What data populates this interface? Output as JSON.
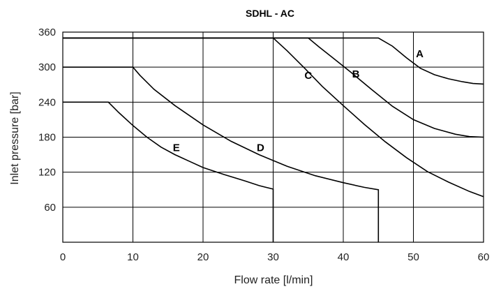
{
  "chart_data": {
    "type": "line",
    "title": "SDHL - AC",
    "xlabel": "Flow rate [l/min]",
    "ylabel": "Inlet pressure [bar]",
    "xlim": [
      0,
      60
    ],
    "ylim": [
      0,
      360
    ],
    "xticks": [
      0,
      10,
      20,
      30,
      40,
      50,
      60
    ],
    "yticks": [
      60,
      120,
      180,
      240,
      300,
      360
    ],
    "ytick_labels": [
      "60",
      "120",
      "180",
      "240",
      "300",
      "360"
    ],
    "xtick_labels": [
      "0",
      "10",
      "20",
      "30",
      "40",
      "50",
      "60"
    ],
    "grid": true,
    "series": [
      {
        "name": "A",
        "points": [
          [
            0,
            350
          ],
          [
            45,
            350
          ],
          [
            47,
            336
          ],
          [
            49,
            316
          ],
          [
            51,
            298
          ],
          [
            53,
            287
          ],
          [
            55,
            280
          ],
          [
            57,
            275
          ],
          [
            58.5,
            272
          ],
          [
            60,
            271
          ]
        ]
      },
      {
        "name": "B",
        "points": [
          [
            0,
            350
          ],
          [
            35,
            350
          ],
          [
            36.5,
            335
          ],
          [
            38.5,
            316
          ],
          [
            41,
            292
          ],
          [
            44,
            262
          ],
          [
            47,
            233
          ],
          [
            50,
            210
          ],
          [
            53,
            195
          ],
          [
            56,
            185
          ],
          [
            58,
            181
          ],
          [
            60,
            180
          ]
        ]
      },
      {
        "name": "C",
        "points": [
          [
            0,
            350
          ],
          [
            30,
            350
          ],
          [
            32,
            328
          ],
          [
            34.5,
            298
          ],
          [
            37,
            267
          ],
          [
            40,
            234
          ],
          [
            43,
            202
          ],
          [
            46,
            172
          ],
          [
            49,
            145
          ],
          [
            52,
            121
          ],
          [
            55,
            103
          ],
          [
            58,
            87
          ],
          [
            60,
            78
          ]
        ]
      },
      {
        "name": "D",
        "points": [
          [
            0,
            300
          ],
          [
            10,
            300
          ],
          [
            11,
            286
          ],
          [
            13,
            262
          ],
          [
            16,
            234
          ],
          [
            20,
            201
          ],
          [
            24,
            173
          ],
          [
            28,
            150
          ],
          [
            32,
            130
          ],
          [
            36,
            114
          ],
          [
            40,
            102
          ],
          [
            43,
            94
          ],
          [
            45,
            90
          ],
          [
            45,
            0
          ]
        ]
      },
      {
        "name": "E",
        "points": [
          [
            0,
            240
          ],
          [
            6.5,
            240
          ],
          [
            8,
            222
          ],
          [
            10,
            200
          ],
          [
            12,
            180
          ],
          [
            14,
            163
          ],
          [
            16,
            150
          ],
          [
            18,
            139
          ],
          [
            20,
            128
          ],
          [
            23,
            116
          ],
          [
            26,
            105
          ],
          [
            28,
            97
          ],
          [
            30,
            91
          ],
          [
            30,
            0
          ]
        ]
      }
    ],
    "labels": [
      {
        "text": "A",
        "x": 50.9,
        "y": 317
      },
      {
        "text": "B",
        "x": 41.8,
        "y": 282
      },
      {
        "text": "C",
        "x": 35.0,
        "y": 280
      },
      {
        "text": "D",
        "x": 28.2,
        "y": 156
      },
      {
        "text": "E",
        "x": 16.2,
        "y": 156
      }
    ]
  }
}
